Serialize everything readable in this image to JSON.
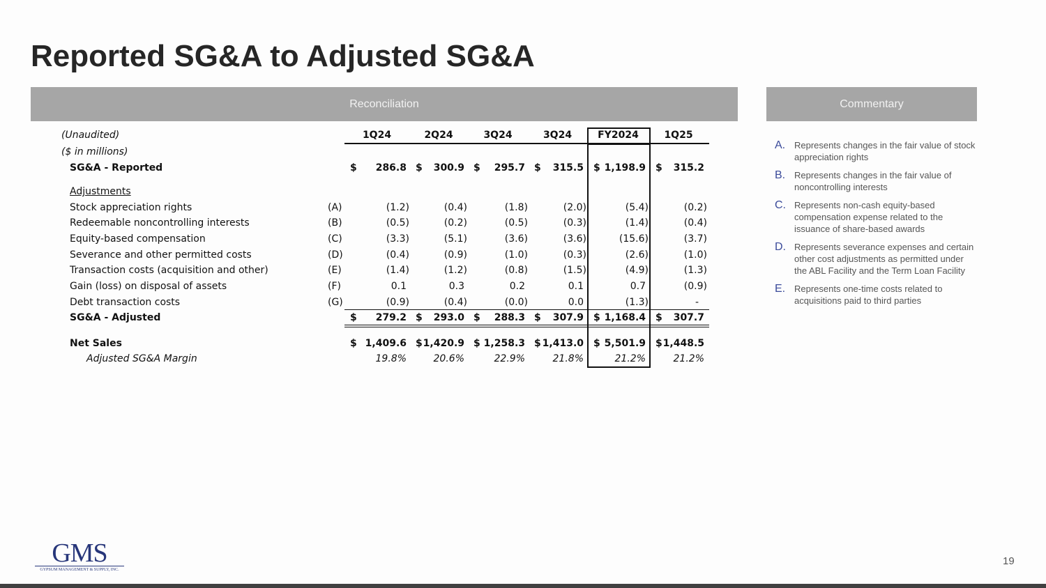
{
  "title": "Reported SG&A to Adjusted SG&A",
  "reconciliation_header": "Reconciliation",
  "commentary_header": "Commentary",
  "table": {
    "unaudited": "(Unaudited)",
    "units": "($ in millions)",
    "columns": [
      "1Q24",
      "2Q24",
      "3Q24",
      "3Q24",
      "FY2024",
      "1Q25"
    ],
    "reported": {
      "label": "SG&A - Reported",
      "values": [
        "286.8",
        "300.9",
        "295.7",
        "315.5",
        "1,198.9",
        "315.2"
      ]
    },
    "adjustments_label": "Adjustments",
    "adjustments": [
      {
        "label": "Stock appreciation rights",
        "ref": "(A)",
        "values": [
          "(1.2)",
          "(0.4)",
          "(1.8)",
          "(2.0)",
          "(5.4)",
          "(0.2)"
        ]
      },
      {
        "label": "Redeemable noncontrolling interests",
        "ref": "(B)",
        "values": [
          "(0.5)",
          "(0.2)",
          "(0.5)",
          "(0.3)",
          "(1.4)",
          "(0.4)"
        ]
      },
      {
        "label": "Equity-based compensation",
        "ref": "(C)",
        "values": [
          "(3.3)",
          "(5.1)",
          "(3.6)",
          "(3.6)",
          "(15.6)",
          "(3.7)"
        ]
      },
      {
        "label": "Severance and other permitted costs",
        "ref": "(D)",
        "values": [
          "(0.4)",
          "(0.9)",
          "(1.0)",
          "(0.3)",
          "(2.6)",
          "(1.0)"
        ]
      },
      {
        "label": "Transaction costs (acquisition and other)",
        "ref": "(E)",
        "values": [
          "(1.4)",
          "(1.2)",
          "(0.8)",
          "(1.5)",
          "(4.9)",
          "(1.3)"
        ]
      },
      {
        "label": "Gain (loss) on disposal of assets",
        "ref": "(F)",
        "values": [
          "0.1",
          "0.3",
          "0.2",
          "0.1",
          "0.7",
          "(0.9)"
        ]
      },
      {
        "label": "Debt transaction costs",
        "ref": "(G)",
        "values": [
          "(0.9)",
          "(0.4)",
          "(0.0)",
          "0.0",
          "(1.3)",
          "-"
        ]
      }
    ],
    "adjusted": {
      "label": "SG&A - Adjusted",
      "values": [
        "279.2",
        "293.0",
        "288.3",
        "307.9",
        "1,168.4",
        "307.7"
      ]
    },
    "net_sales": {
      "label": "Net Sales",
      "values": [
        "1,409.6",
        "1,420.9",
        "1,258.3",
        "1,413.0",
        "5,501.9",
        "1,448.5"
      ]
    },
    "margin": {
      "label": "Adjusted SG&A Margin",
      "values": [
        "19.8%",
        "20.6%",
        "22.9%",
        "21.8%",
        "21.2%",
        "21.2%"
      ]
    },
    "currency": "$"
  },
  "commentary": [
    {
      "letter": "A.",
      "text": "Represents changes in the fair value of stock appreciation rights"
    },
    {
      "letter": "B.",
      "text": "Represents changes in the fair value of noncontrolling interests"
    },
    {
      "letter": "C.",
      "text": "Represents non-cash equity-based compensation expense related to the issuance of share-based awards"
    },
    {
      "letter": "D.",
      "text": "Represents severance expenses and certain other cost adjustments as permitted under the ABL Facility and the Term Loan Facility"
    },
    {
      "letter": "E.",
      "text": "Represents one-time costs related to acquisitions paid to third parties"
    }
  ],
  "logo": {
    "name": "GMS",
    "tagline": "GYPSUM MANAGEMENT & SUPPLY, INC."
  },
  "page_number": "19"
}
